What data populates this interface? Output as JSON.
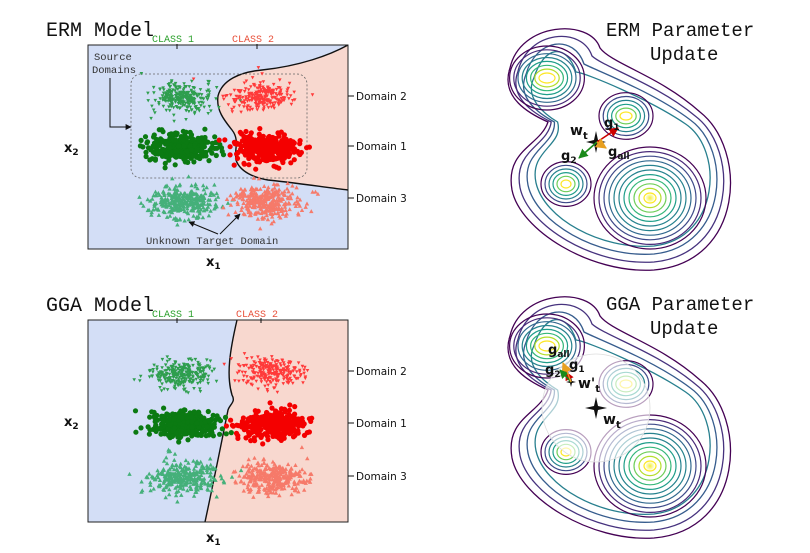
{
  "colors": {
    "class1_dark": "#0b7a12",
    "class1_light": "#2e9e4e",
    "class1_teal": "#45b07a",
    "class2_dark": "#f40000",
    "class2_light": "#ff3a3a",
    "class2_salmon": "#f67a6a",
    "region_blue": "#d3def6",
    "region_pink": "#f8d8cf",
    "class1_label": "#2ca02c",
    "class2_label": "#e8503a"
  },
  "panels": {
    "erm_model": {
      "title": "ERM Model",
      "class1": "CLASS 1",
      "class2": "CLASS 2",
      "domains": [
        "Domain 2",
        "Domain 1",
        "Domain 3"
      ],
      "x_label": "x",
      "x_sub": "1",
      "y_label": "x",
      "y_sub": "2",
      "source_label_line1": "Source",
      "source_label_line2": "Domains",
      "target_label": "Unknown Target Domain"
    },
    "gga_model": {
      "title": "GGA Model",
      "class1": "CLASS 1",
      "class2": "CLASS 2",
      "domains": [
        "Domain 2",
        "Domain 1",
        "Domain 3"
      ],
      "x_label": "x",
      "x_sub": "1",
      "y_label": "x",
      "y_sub": "2"
    },
    "erm_update": {
      "title_line1": "ERM Parameter",
      "title_line2": "Update",
      "w": "w",
      "w_sub": "t",
      "g1": "g",
      "g1_sub": "1",
      "g2": "g",
      "g2_sub": "2",
      "gall": "g",
      "gall_sub": "all"
    },
    "gga_update": {
      "title_line1": "GGA Parameter",
      "title_line2": "Update",
      "w": "w",
      "w_sub": "t",
      "wp": "w'",
      "wp_sub": "t",
      "g1": "g",
      "g1_sub": "1",
      "g2": "g",
      "g2_sub": "2",
      "gall": "g",
      "gall_sub": "all"
    }
  }
}
